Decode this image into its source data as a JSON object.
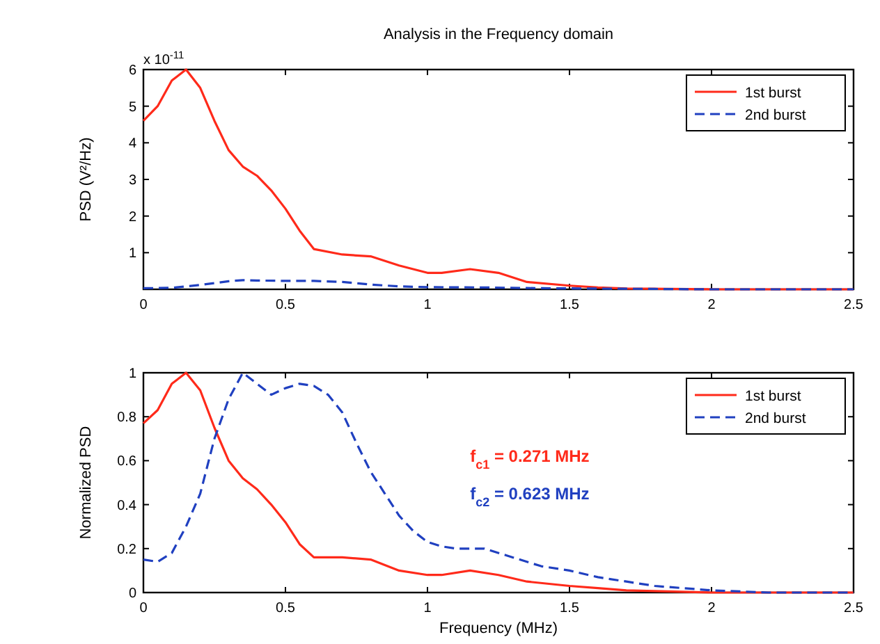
{
  "chart_data": [
    {
      "type": "line",
      "title": "Analysis in the Frequency domain",
      "ylabel": "PSD (V²/Hz)",
      "annotations": [
        "x 10$^{-11}$"
      ],
      "xlim": [
        0,
        2.5
      ],
      "xticks": [
        0,
        0.5,
        1,
        1.5,
        2,
        2.5
      ],
      "ylim": [
        0,
        6
      ],
      "yticks": [
        {
          "value": 0,
          "label": null
        },
        1,
        2,
        3,
        4,
        5,
        6
      ],
      "legend": "top right",
      "grid": false,
      "series": [
        {
          "name": "1st burst",
          "color": "#ff2a1a",
          "line_style": "solid",
          "x": [
            0,
            0.05,
            0.1,
            0.15,
            0.2,
            0.25,
            0.3,
            0.35,
            0.4,
            0.45,
            0.5,
            0.55,
            0.6,
            0.7,
            0.8,
            0.9,
            1.0,
            1.05,
            1.15,
            1.25,
            1.35,
            1.5,
            1.6,
            1.7,
            2.0,
            2.5
          ],
          "values": [
            4.6,
            5.0,
            5.7,
            6,
            5.5,
            4.6,
            3.8,
            3.35,
            3.1,
            2.7,
            2.2,
            1.6,
            1.1,
            0.95,
            0.9,
            0.65,
            0.45,
            0.45,
            0.55,
            0.45,
            0.2,
            0.1,
            0.05,
            0.02,
            0,
            0
          ]
        },
        {
          "name": "2nd burst",
          "color": "#2040c0",
          "line_style": "dashed",
          "x": [
            0,
            0.1,
            0.2,
            0.3,
            0.35,
            0.4,
            0.5,
            0.6,
            0.7,
            0.8,
            0.9,
            1.0,
            1.2,
            1.4,
            1.6,
            1.8,
            2.0,
            2.5
          ],
          "values": [
            0.03,
            0.04,
            0.12,
            0.22,
            0.25,
            0.24,
            0.23,
            0.23,
            0.2,
            0.13,
            0.08,
            0.06,
            0.05,
            0.03,
            0.02,
            0.01,
            0,
            0
          ]
        }
      ]
    },
    {
      "type": "line",
      "xlabel": "Frequency (MHz)",
      "ylabel": "Normalized PSD",
      "annotations": [
        "f$_{c1}$ = 0.271 MHz",
        "f$_{c2}$ = 0.623 MHz"
      ],
      "xlim": [
        0,
        2.5
      ],
      "xticks": [
        0,
        0.5,
        1,
        1.5,
        2,
        2.5
      ],
      "ylim": [
        0,
        1
      ],
      "yticks": [
        0,
        0.2,
        0.4,
        0.6,
        0.8,
        1
      ],
      "legend": "top right",
      "grid": false,
      "series": [
        {
          "name": "1st burst",
          "color": "#ff2a1a",
          "line_style": "solid",
          "x": [
            0,
            0.05,
            0.1,
            0.15,
            0.2,
            0.25,
            0.3,
            0.35,
            0.4,
            0.45,
            0.5,
            0.55,
            0.6,
            0.7,
            0.8,
            0.9,
            1.0,
            1.05,
            1.15,
            1.25,
            1.35,
            1.5,
            1.6,
            1.7,
            2.0,
            2.5
          ],
          "values": [
            0.77,
            0.83,
            0.95,
            1.0,
            0.92,
            0.75,
            0.6,
            0.52,
            0.47,
            0.4,
            0.32,
            0.22,
            0.16,
            0.16,
            0.15,
            0.1,
            0.08,
            0.08,
            0.1,
            0.08,
            0.05,
            0.03,
            0.02,
            0.01,
            0,
            0
          ]
        },
        {
          "name": "2nd burst",
          "color": "#2040c0",
          "line_style": "dashed",
          "x": [
            0,
            0.05,
            0.1,
            0.15,
            0.2,
            0.25,
            0.3,
            0.35,
            0.4,
            0.45,
            0.5,
            0.55,
            0.6,
            0.65,
            0.7,
            0.75,
            0.8,
            0.85,
            0.9,
            0.95,
            1.0,
            1.05,
            1.1,
            1.2,
            1.3,
            1.4,
            1.5,
            1.6,
            1.7,
            1.8,
            1.9,
            2.0,
            2.2,
            2.5
          ],
          "values": [
            0.15,
            0.14,
            0.18,
            0.3,
            0.45,
            0.7,
            0.88,
            1.0,
            0.95,
            0.9,
            0.93,
            0.95,
            0.94,
            0.9,
            0.82,
            0.68,
            0.55,
            0.45,
            0.35,
            0.28,
            0.23,
            0.21,
            0.2,
            0.2,
            0.16,
            0.12,
            0.1,
            0.07,
            0.05,
            0.03,
            0.02,
            0.01,
            0,
            0
          ]
        }
      ]
    }
  ]
}
